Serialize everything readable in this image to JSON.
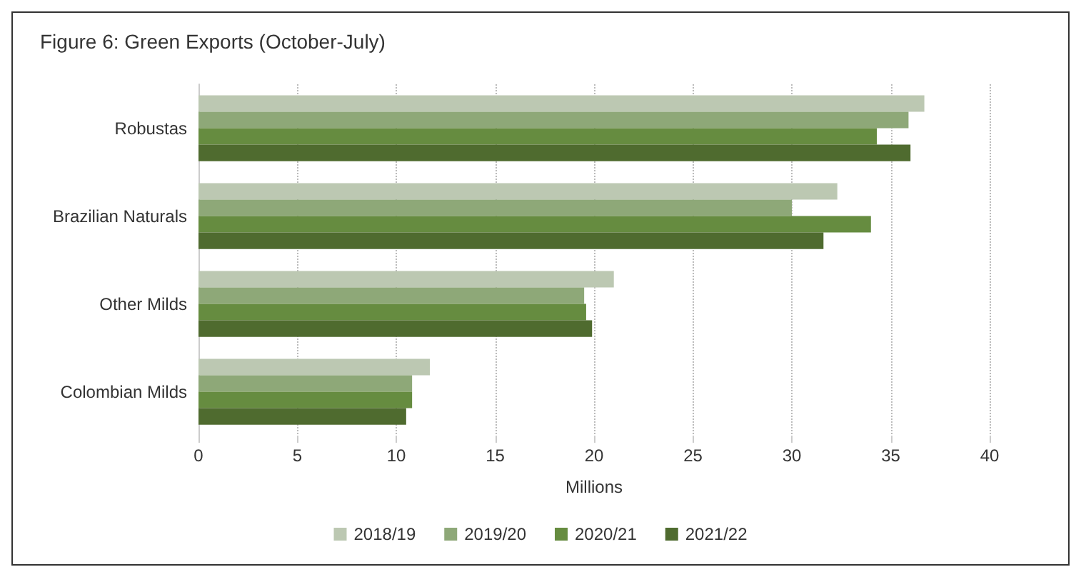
{
  "chart_data": {
    "type": "bar",
    "orientation": "horizontal",
    "title": "Figure 6: Green Exports (October-July)",
    "xlabel": "Millions",
    "categories": [
      "Robustas",
      "Brazilian Naturals",
      "Other Milds",
      "Colombian Milds"
    ],
    "series": [
      {
        "name": "2018/19",
        "color": "#bcc8b2",
        "values": [
          36.7,
          32.3,
          21.0,
          11.7
        ]
      },
      {
        "name": "2019/20",
        "color": "#8ea878",
        "values": [
          35.9,
          30.0,
          19.5,
          10.8
        ]
      },
      {
        "name": "2020/21",
        "color": "#668c40",
        "values": [
          34.3,
          34.0,
          19.6,
          10.8
        ]
      },
      {
        "name": "2021/22",
        "color": "#4f6b2f",
        "values": [
          36.0,
          31.6,
          19.9,
          10.5
        ]
      }
    ],
    "xlim": [
      0,
      40
    ],
    "xticks": [
      0,
      5,
      10,
      15,
      20,
      25,
      30,
      35,
      40
    ],
    "grid": "x",
    "legend": "bottom"
  }
}
